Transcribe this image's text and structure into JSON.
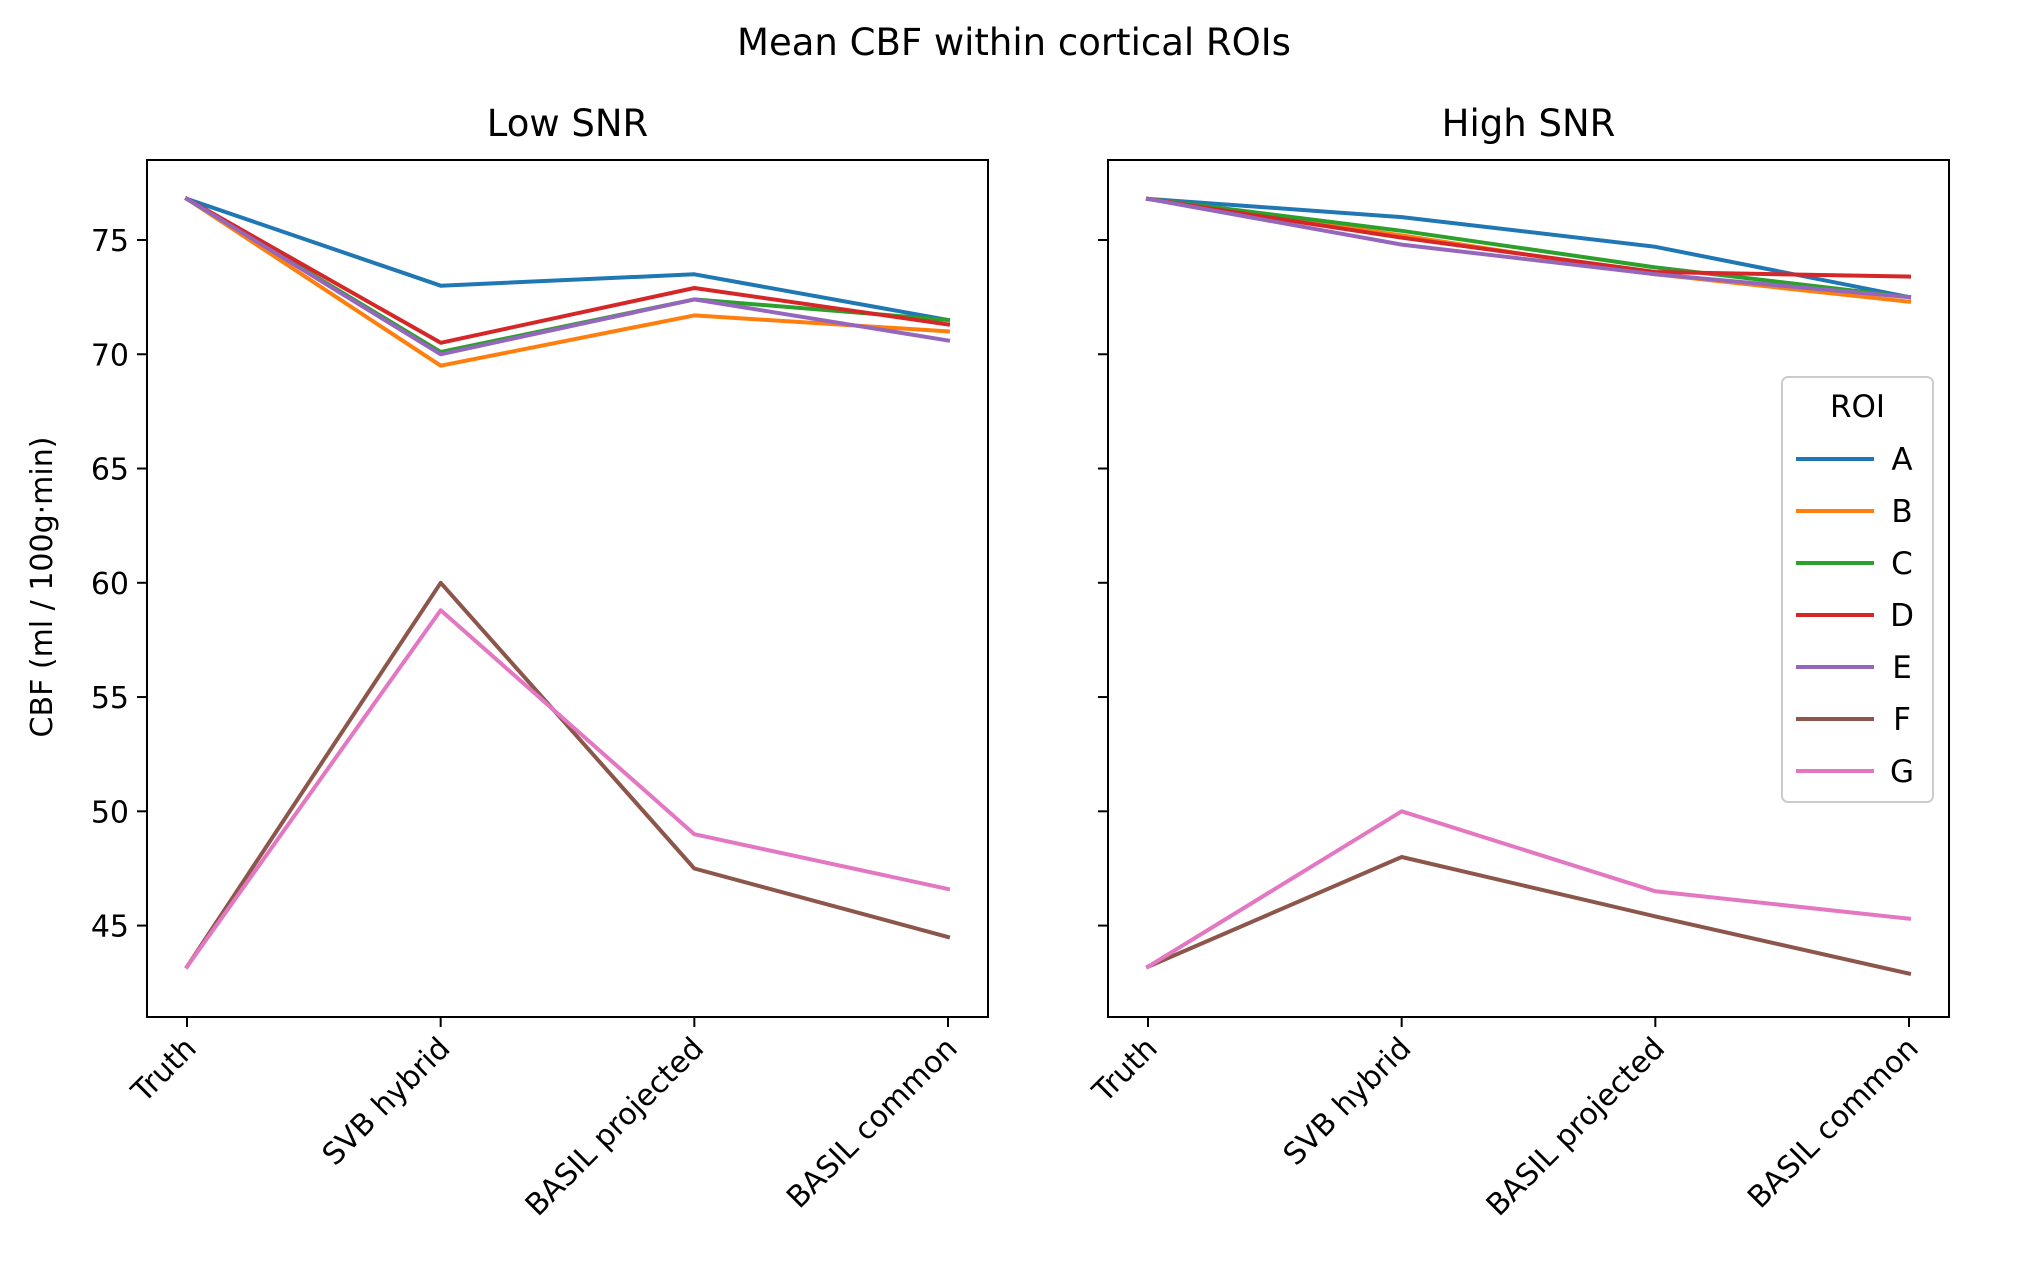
{
  "chart_data": {
    "type": "line",
    "title": "Mean CBF within cortical ROIs",
    "ylabel": "CBF (ml / 100g·min)",
    "categories": [
      "Truth",
      "SVB hybrid",
      "BASIL projected",
      "BASIL common"
    ],
    "ylim": [
      41.0,
      78.5
    ],
    "yticks": [
      "45",
      "50",
      "55",
      "60",
      "65",
      "70",
      "75"
    ],
    "sharey": true,
    "grid": false,
    "legend": {
      "title": "ROI",
      "placement": "right, in High SNR panel",
      "entries": [
        "A",
        "B",
        "C",
        "D",
        "E",
        "F",
        "G"
      ]
    },
    "colors": {
      "A": "#1f77b4",
      "B": "#ff7f0e",
      "C": "#2ca02c",
      "D": "#d62728",
      "E": "#9467bd",
      "F": "#8c564b",
      "G": "#e377c2"
    },
    "panels": [
      {
        "title": "Low SNR",
        "series": [
          {
            "name": "A",
            "values": [
              76.8,
              73.0,
              73.5,
              71.5
            ]
          },
          {
            "name": "B",
            "values": [
              76.8,
              69.5,
              71.7,
              71.0
            ]
          },
          {
            "name": "C",
            "values": [
              76.8,
              70.1,
              72.4,
              71.5
            ]
          },
          {
            "name": "D",
            "values": [
              76.8,
              70.5,
              72.9,
              71.3
            ]
          },
          {
            "name": "E",
            "values": [
              76.8,
              70.0,
              72.4,
              70.6
            ]
          },
          {
            "name": "F",
            "values": [
              43.2,
              60.0,
              47.5,
              44.5
            ]
          },
          {
            "name": "G",
            "values": [
              43.2,
              58.8,
              49.0,
              46.6
            ]
          }
        ]
      },
      {
        "title": "High SNR",
        "series": [
          {
            "name": "A",
            "values": [
              76.8,
              76.0,
              74.7,
              72.5
            ]
          },
          {
            "name": "B",
            "values": [
              76.8,
              75.2,
              73.5,
              72.3
            ]
          },
          {
            "name": "C",
            "values": [
              76.8,
              75.4,
              73.8,
              72.5
            ]
          },
          {
            "name": "D",
            "values": [
              76.8,
              75.1,
              73.6,
              73.4
            ]
          },
          {
            "name": "E",
            "values": [
              76.8,
              74.8,
              73.5,
              72.5
            ]
          },
          {
            "name": "F",
            "values": [
              43.2,
              48.0,
              45.4,
              42.9
            ]
          },
          {
            "name": "G",
            "values": [
              43.2,
              50.0,
              46.5,
              45.3
            ]
          }
        ]
      }
    ]
  }
}
